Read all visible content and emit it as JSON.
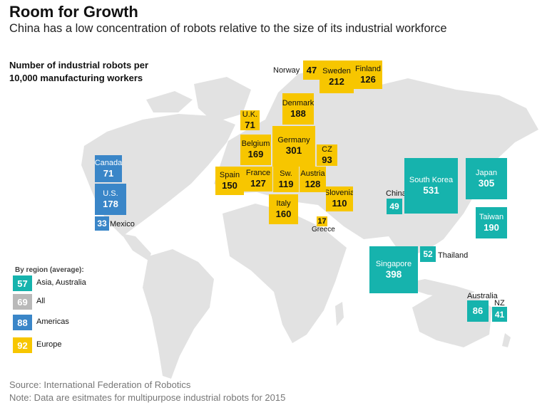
{
  "chart_data": {
    "type": "table",
    "title": "Room for Growth",
    "subtitle": "China has a low concentration of robots relative to the size of its industrial workforce",
    "metric_label": [
      "Number of industrial robots per",
      "10,000 manufacturing workers"
    ],
    "countries": [
      {
        "name": "Norway",
        "value": 47,
        "region": "Europe"
      },
      {
        "name": "Sweden",
        "value": 212,
        "region": "Europe"
      },
      {
        "name": "Finland",
        "value": 126,
        "region": "Europe"
      },
      {
        "name": "Denmark",
        "value": 188,
        "region": "Europe"
      },
      {
        "name": "U.K.",
        "value": 71,
        "region": "Europe"
      },
      {
        "name": "Belgium",
        "value": 169,
        "region": "Europe"
      },
      {
        "name": "Germany",
        "value": 301,
        "region": "Europe"
      },
      {
        "name": "CZ",
        "value": 93,
        "region": "Europe"
      },
      {
        "name": "Spain",
        "value": 150,
        "region": "Europe"
      },
      {
        "name": "France",
        "value": 127,
        "region": "Europe"
      },
      {
        "name": "Sw.",
        "value": 119,
        "region": "Europe"
      },
      {
        "name": "Austria",
        "value": 128,
        "region": "Europe"
      },
      {
        "name": "Slovenia",
        "value": 110,
        "region": "Europe"
      },
      {
        "name": "Italy",
        "value": 160,
        "region": "Europe"
      },
      {
        "name": "Greece",
        "value": 17,
        "region": "Europe"
      },
      {
        "name": "Canada",
        "value": 71,
        "region": "Americas"
      },
      {
        "name": "U.S.",
        "value": 178,
        "region": "Americas"
      },
      {
        "name": "Mexico",
        "value": 33,
        "region": "Americas"
      },
      {
        "name": "China",
        "value": 49,
        "region": "Asia, Australia"
      },
      {
        "name": "South Korea",
        "value": 531,
        "region": "Asia, Australia"
      },
      {
        "name": "Japan",
        "value": 305,
        "region": "Asia, Australia"
      },
      {
        "name": "Taiwan",
        "value": 190,
        "region": "Asia, Australia"
      },
      {
        "name": "Singapore",
        "value": 398,
        "region": "Asia, Australia"
      },
      {
        "name": "Thailand",
        "value": 52,
        "region": "Asia, Australia"
      },
      {
        "name": "Australia",
        "value": 86,
        "region": "Asia, Australia"
      },
      {
        "name": "NZ",
        "value": 41,
        "region": "Asia, Australia"
      }
    ],
    "legend": {
      "title": "By region (average):",
      "items": [
        {
          "label": "Asia, Australia",
          "value": 57,
          "color": "#16b3ad"
        },
        {
          "label": "All",
          "value": 69,
          "color": "#b9b9b9"
        },
        {
          "label": "Americas",
          "value": 88,
          "color": "#3a86c8"
        },
        {
          "label": "Europe",
          "value": 92,
          "color": "#f7c600"
        }
      ]
    }
  },
  "colors": {
    "europe": "#f7c600",
    "asia": "#16b3ad",
    "americas": "#3a86c8",
    "all": "#b9b9b9",
    "land": "#e2e2e2"
  },
  "footer": {
    "source": "Source: International Federation of Robotics",
    "note": "Note: Data are esitmates for multipurpose industrial robots for 2015"
  }
}
